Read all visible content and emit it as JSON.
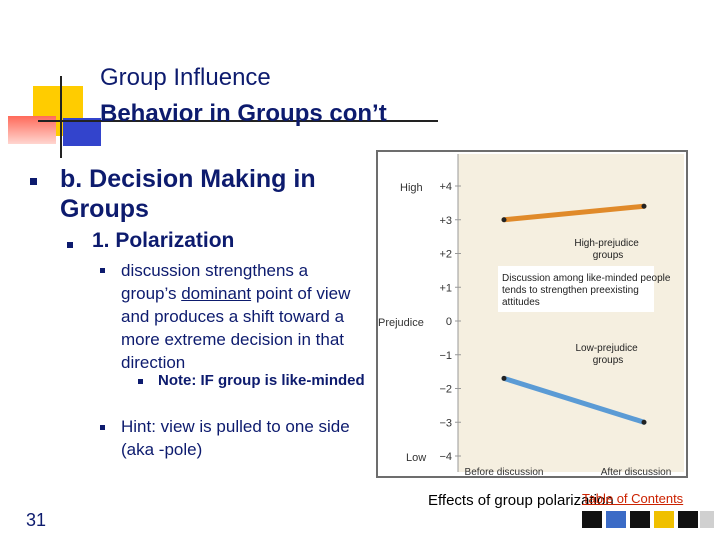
{
  "slide": {
    "title_line1": "Group Influence",
    "title_line2": "Behavior in Groups con’t",
    "number": "31"
  },
  "bullets": {
    "level1": "b. Decision Making in Groups",
    "level2": "1. Polarization",
    "level3_part1": "discussion strengthens a group’s ",
    "level3_underlined": "dominant",
    "level3_part2": " point of view and produces a shift toward a more extreme decision in that direction",
    "level4": "Note: IF group is like-minded",
    "hint": "Hint: view is pulled to one side (aka -pole)"
  },
  "figure": {
    "caption": "Effects of group polarization",
    "toc_link": "Table of Contents"
  },
  "colors": {
    "title": "#0d1b6e",
    "high_line": "#e08a2a",
    "low_line": "#5b9bd5",
    "chart_bg": "#f5efe0",
    "toc": "#cc2200"
  },
  "chart_data": {
    "type": "line",
    "ylabel": "Prejudice",
    "ylim": [
      -4,
      4
    ],
    "y_ticks": [
      "+4",
      "+3",
      "+2",
      "+1",
      "0",
      "−1",
      "−2",
      "−3",
      "−4"
    ],
    "y_high_label": "High",
    "y_low_label": "Low",
    "categories": [
      "Before discussion",
      "After discussion"
    ],
    "series": [
      {
        "name": "High-prejudice groups",
        "values": [
          3.0,
          3.4
        ]
      },
      {
        "name": "Low-prejudice groups",
        "values": [
          -1.7,
          -3.0
        ]
      }
    ],
    "annotation": "Discussion among like-minded people tends to strengthen preexisting attitudes"
  }
}
